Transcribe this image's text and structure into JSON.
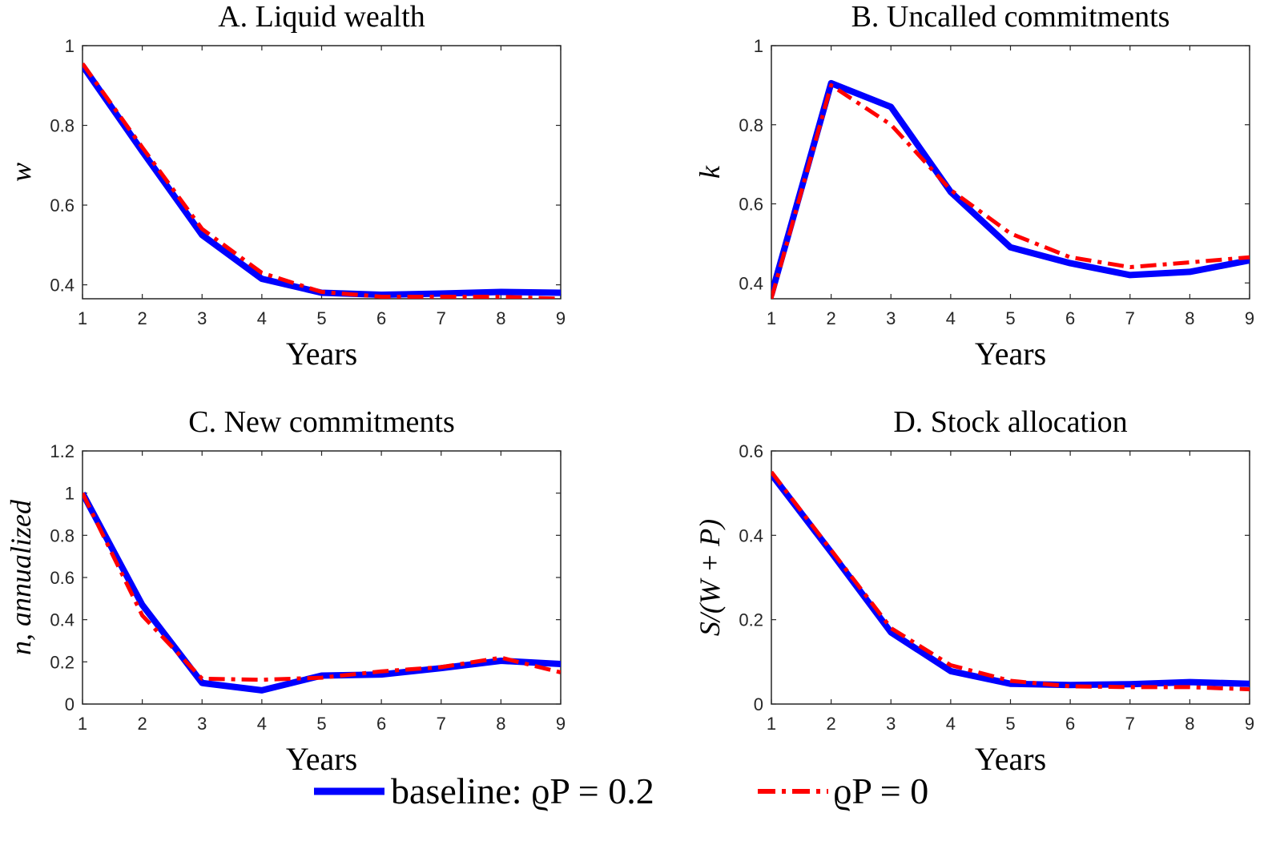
{
  "legend": {
    "baseline_label": "baseline:  ϱP = 0.2",
    "alt_label": "ϱP = 0"
  },
  "colors": {
    "baseline": "#0000ff",
    "alt": "#ff0000",
    "axis": "#262626"
  },
  "chart_data": [
    {
      "id": "A",
      "type": "line",
      "title": "A. Liquid wealth",
      "xlabel": "Years",
      "ylabel": "w",
      "x": [
        1,
        2,
        3,
        4,
        5,
        6,
        7,
        8,
        9
      ],
      "xlim": [
        1,
        9
      ],
      "ylim": [
        0.365,
        1
      ],
      "yticks": [
        0.4,
        0.6,
        0.8,
        1
      ],
      "ytick_labels": [
        "0.4",
        "0.6",
        "0.8",
        "1"
      ],
      "series": [
        {
          "name": "baseline: ϱP = 0.2",
          "values": [
            0.95,
            0.735,
            0.525,
            0.415,
            0.38,
            0.375,
            0.378,
            0.382,
            0.38
          ]
        },
        {
          "name": "ϱP = 0",
          "values": [
            0.955,
            0.745,
            0.54,
            0.43,
            0.382,
            0.37,
            0.37,
            0.37,
            0.365
          ]
        }
      ]
    },
    {
      "id": "B",
      "type": "line",
      "title": "B. Uncalled commitments",
      "xlabel": "Years",
      "ylabel": "k",
      "x": [
        1,
        2,
        3,
        4,
        5,
        6,
        7,
        8,
        9
      ],
      "xlim": [
        1,
        9
      ],
      "ylim": [
        0.36,
        1
      ],
      "yticks": [
        0.4,
        0.6,
        0.8,
        1
      ],
      "ytick_labels": [
        "0.4",
        "0.6",
        "0.8",
        "1"
      ],
      "series": [
        {
          "name": "baseline: ϱP = 0.2",
          "values": [
            0.37,
            0.905,
            0.845,
            0.63,
            0.49,
            0.45,
            0.42,
            0.428,
            0.457
          ]
        },
        {
          "name": "ϱP = 0",
          "values": [
            0.36,
            0.9,
            0.8,
            0.635,
            0.525,
            0.465,
            0.44,
            0.452,
            0.465
          ]
        }
      ]
    },
    {
      "id": "C",
      "type": "line",
      "title": "C. New commitments",
      "xlabel": "Years",
      "ylabel": "n, annualized",
      "x": [
        1,
        2,
        3,
        4,
        5,
        6,
        7,
        8,
        9
      ],
      "xlim": [
        1,
        9
      ],
      "ylim": [
        0,
        1.2
      ],
      "yticks": [
        0,
        0.2,
        0.4,
        0.6,
        0.8,
        1,
        1.2
      ],
      "ytick_labels": [
        "0",
        "0.2",
        "0.4",
        "0.6",
        "0.8",
        "1",
        "1.2"
      ],
      "series": [
        {
          "name": "baseline: ϱP = 0.2",
          "values": [
            1.0,
            0.47,
            0.1,
            0.065,
            0.135,
            0.14,
            0.17,
            0.205,
            0.19
          ]
        },
        {
          "name": "ϱP = 0",
          "values": [
            1.0,
            0.42,
            0.12,
            0.115,
            0.125,
            0.155,
            0.175,
            0.22,
            0.15
          ]
        }
      ]
    },
    {
      "id": "D",
      "type": "line",
      "title": "D. Stock allocation",
      "xlabel": "Years",
      "ylabel": "S/(W + P)",
      "x": [
        1,
        2,
        3,
        4,
        5,
        6,
        7,
        8,
        9
      ],
      "xlim": [
        1,
        9
      ],
      "ylim": [
        0,
        0.6
      ],
      "yticks": [
        0,
        0.2,
        0.4,
        0.6
      ],
      "ytick_labels": [
        "0",
        "0.2",
        "0.4",
        "0.6"
      ],
      "series": [
        {
          "name": "baseline: ϱP = 0.2",
          "values": [
            0.545,
            0.36,
            0.17,
            0.078,
            0.048,
            0.045,
            0.047,
            0.052,
            0.048
          ]
        },
        {
          "name": "ϱP = 0",
          "values": [
            0.55,
            0.365,
            0.18,
            0.092,
            0.055,
            0.042,
            0.04,
            0.04,
            0.035
          ]
        }
      ]
    }
  ]
}
